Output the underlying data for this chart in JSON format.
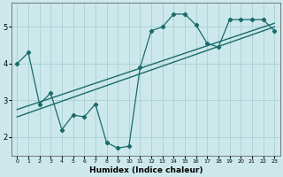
{
  "xlabel": "Humidex (Indice chaleur)",
  "bg_color": "#cce8eb",
  "grid_color": "#aacfd4",
  "line_color": "#1a6b6b",
  "scatter_x": [
    0,
    1,
    2,
    3,
    4,
    5,
    6,
    7,
    8,
    9,
    10,
    11,
    12,
    13,
    14,
    15,
    16,
    17,
    18,
    19,
    20,
    21,
    22,
    23
  ],
  "scatter_y": [
    4.0,
    4.3,
    2.9,
    3.2,
    2.2,
    2.6,
    2.55,
    2.9,
    1.85,
    1.7,
    1.75,
    3.9,
    4.9,
    5.0,
    5.35,
    5.35,
    5.05,
    4.55,
    4.45,
    5.2,
    5.2,
    5.2,
    5.2,
    4.9
  ],
  "trend1_x": [
    0,
    23
  ],
  "trend1_y": [
    2.55,
    5.0
  ],
  "trend2_x": [
    0,
    23
  ],
  "trend2_y": [
    2.75,
    5.1
  ],
  "ylim": [
    1.5,
    5.65
  ],
  "xlim": [
    -0.5,
    23.5
  ],
  "yticks": [
    2,
    3,
    4,
    5
  ],
  "xticks": [
    0,
    1,
    2,
    3,
    4,
    5,
    6,
    7,
    8,
    9,
    10,
    11,
    12,
    13,
    14,
    15,
    16,
    17,
    18,
    19,
    20,
    21,
    22,
    23
  ]
}
